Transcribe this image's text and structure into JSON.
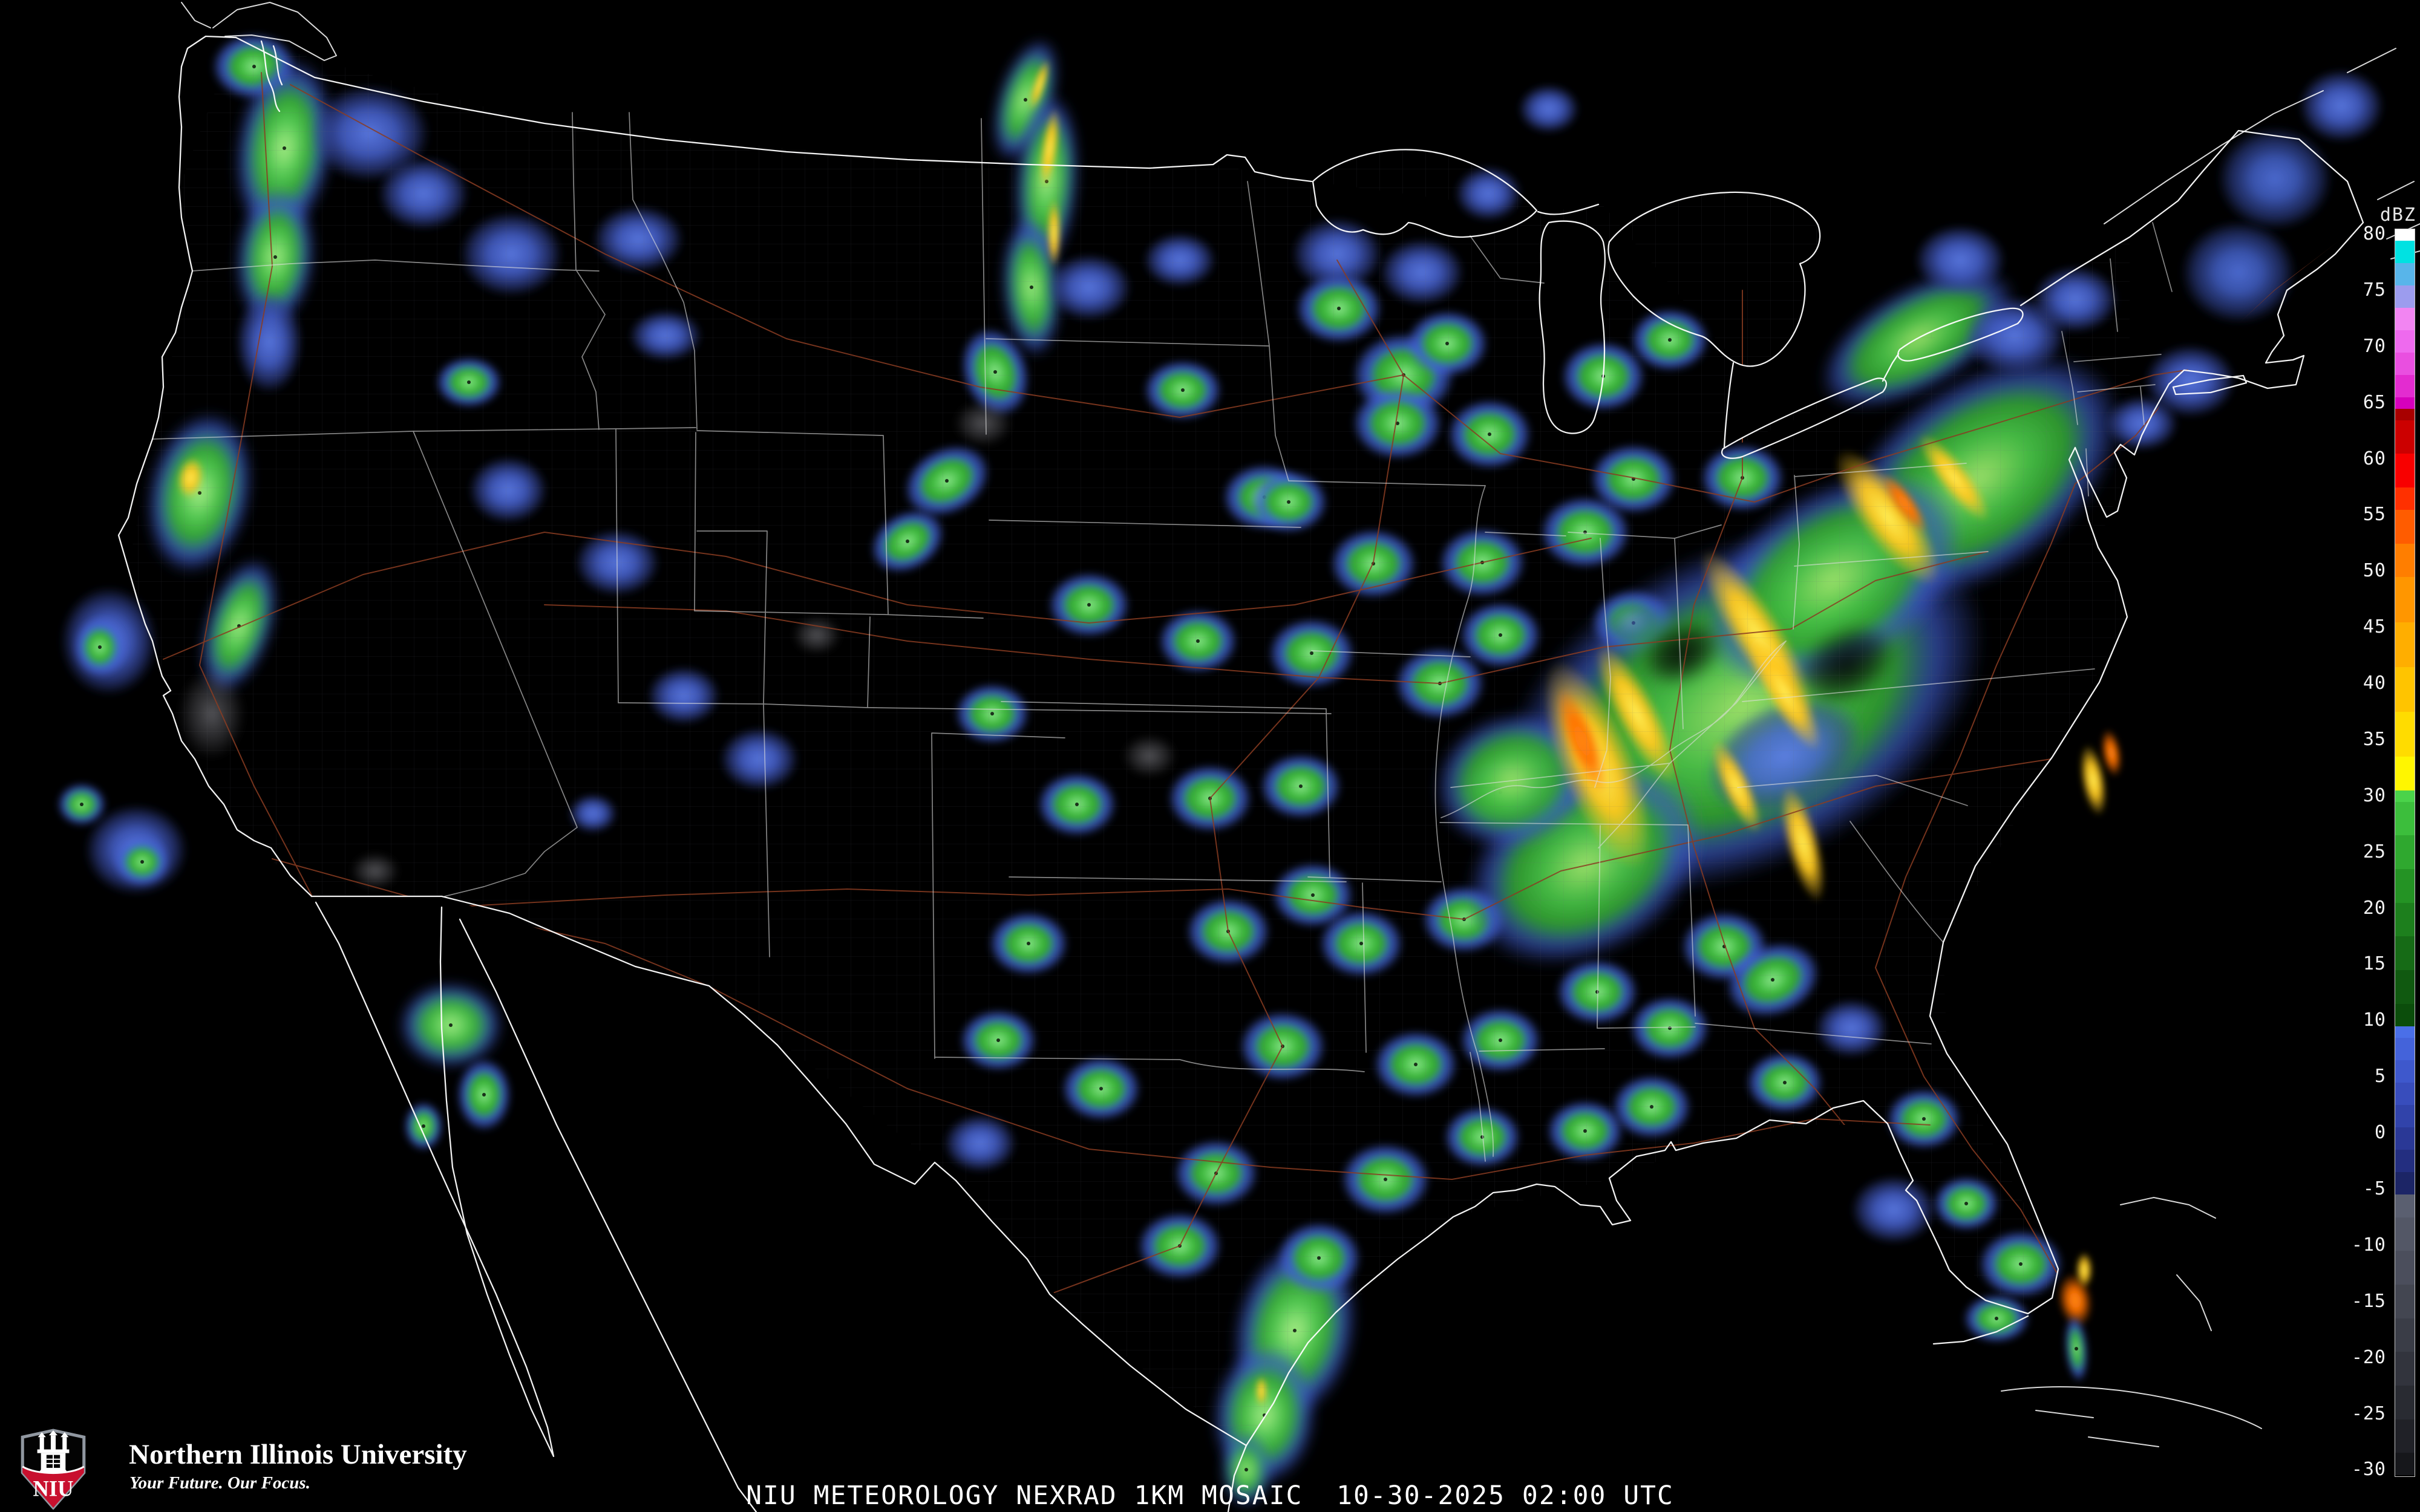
{
  "caption": {
    "text": "NIU METEOROLOGY NEXRAD 1KM MOSAIC  10-30-2025 02:00 UTC"
  },
  "branding": {
    "university_name": "Northern Illinois University",
    "tagline": "Your Future. Our Focus.",
    "logo_acronym": "NIU",
    "logo_red": "#c8102e",
    "logo_border_gray": "#9097a0"
  },
  "colorbar": {
    "title": "dBZ",
    "unit": "dBZ",
    "range_top": 80,
    "range_bottom": -31,
    "tick_labels": [
      "80",
      "75",
      "70",
      "65",
      "60",
      "55",
      "50",
      "45",
      "40",
      "35",
      "30",
      "25",
      "20",
      "15",
      "10",
      "5",
      "0",
      "-5",
      "-10",
      "-15",
      "-20",
      "-25",
      "-30"
    ],
    "key_stops": [
      [
        80,
        "#ffffff"
      ],
      [
        78,
        "#00e2e2"
      ],
      [
        76,
        "#58b5ea"
      ],
      [
        74,
        "#9c9cee"
      ],
      [
        72,
        "#f285f2"
      ],
      [
        70,
        "#ee6aee"
      ],
      [
        68,
        "#e94fe0"
      ],
      [
        66,
        "#e32cd0"
      ],
      [
        65,
        "#d600bc"
      ],
      [
        64,
        "#a80000"
      ],
      [
        61,
        "#cc0000"
      ],
      [
        58,
        "#f80000"
      ],
      [
        56,
        "#ff3000"
      ],
      [
        53,
        "#ff5c00"
      ],
      [
        50,
        "#ff7e00"
      ],
      [
        46,
        "#ff9600"
      ],
      [
        42,
        "#ffae00"
      ],
      [
        38,
        "#ffc400"
      ],
      [
        34,
        "#ffdc00"
      ],
      [
        31,
        "#fff600"
      ],
      [
        30,
        "#4ad34a"
      ],
      [
        27,
        "#3cbe3c"
      ],
      [
        24,
        "#2fa82f"
      ],
      [
        21,
        "#249324"
      ],
      [
        18,
        "#1d7f1d"
      ],
      [
        15,
        "#166b16"
      ],
      [
        12,
        "#105910"
      ],
      [
        10,
        "#0b4d0b"
      ],
      [
        9,
        "#4a6fe8"
      ],
      [
        7,
        "#4463da"
      ],
      [
        5,
        "#3e58cc"
      ],
      [
        3,
        "#384dbc"
      ],
      [
        1,
        "#3143aa"
      ],
      [
        -1,
        "#2a3896"
      ],
      [
        -3,
        "#232e80"
      ],
      [
        -5,
        "#1c2566"
      ],
      [
        -7,
        "#5a5f70"
      ],
      [
        -10,
        "#535766"
      ],
      [
        -13,
        "#4b4e5c"
      ],
      [
        -16,
        "#434651"
      ],
      [
        -19,
        "#3a3d47"
      ],
      [
        -22,
        "#32343d"
      ],
      [
        -25,
        "#292b32"
      ],
      [
        -28,
        "#202127"
      ],
      [
        -31,
        "#16171b"
      ]
    ]
  },
  "map_colors": {
    "coast": "#ffffff",
    "state": "#dedede",
    "county": "#6a6a72",
    "road": "#8a3c22",
    "water_fill": "#000000"
  },
  "echo_palettes": {
    "g": [
      [
        0,
        "#90e890",
        1
      ],
      [
        0.32,
        "#3fbc3f",
        1
      ],
      [
        0.55,
        "#2f9e2f",
        0.98
      ],
      [
        0.68,
        "#3c5ecf",
        0.9
      ],
      [
        0.82,
        "#4566dd",
        0.6
      ],
      [
        1,
        "#4566dd",
        0
      ]
    ],
    "G": [
      [
        0,
        "#b2f08c",
        1
      ],
      [
        0.3,
        "#54ca54",
        1
      ],
      [
        0.58,
        "#2f9e2f",
        1
      ],
      [
        0.78,
        "#3b58c8",
        0.8
      ],
      [
        1,
        "#3b58c8",
        0
      ]
    ],
    "S": [
      [
        0,
        "#9fe36b",
        0.98
      ],
      [
        0.35,
        "#46c046",
        0.96
      ],
      [
        0.62,
        "#2f9e2f",
        0.92
      ],
      [
        0.8,
        "#3a55c2",
        0.7
      ],
      [
        1,
        "#3a55c2",
        0
      ]
    ],
    "b": [
      [
        0,
        "#5d7ce8",
        0.95
      ],
      [
        0.45,
        "#4763d2",
        0.85
      ],
      [
        0.75,
        "#35479e",
        0.6
      ],
      [
        1,
        "#35479e",
        0
      ]
    ],
    "B": [
      [
        0,
        "#4f6fd8",
        0.95
      ],
      [
        0.4,
        "#4260c8",
        0.85
      ],
      [
        0.75,
        "#33489f",
        0.55
      ],
      [
        1,
        "#33489f",
        0
      ]
    ],
    "y": [
      [
        0,
        "#ffee55",
        1
      ],
      [
        0.45,
        "#ffc81e",
        0.95
      ],
      [
        1,
        "#ffc81e",
        0
      ]
    ],
    "o": [
      [
        0,
        "#ff8c1a",
        1
      ],
      [
        0.4,
        "#ff7000",
        0.95
      ],
      [
        1,
        "#ff7000",
        0
      ]
    ],
    "s": [
      [
        0,
        "#a8a8b0",
        0.5
      ],
      [
        0.55,
        "#84848c",
        0.3
      ],
      [
        1,
        "#84848c",
        0
      ]
    ],
    "hole": [
      [
        0,
        "#000000",
        0.9
      ],
      [
        0.6,
        "#000000",
        0.55
      ],
      [
        1,
        "#000000",
        0
      ]
    ]
  },
  "echoes": [
    [
      420,
      110,
      70,
      55,
      0,
      "g"
    ],
    [
      470,
      245,
      80,
      150,
      8,
      "G"
    ],
    [
      455,
      425,
      65,
      115,
      5,
      "G"
    ],
    [
      445,
      565,
      55,
      85,
      0,
      "b"
    ],
    [
      610,
      220,
      100,
      80,
      0,
      "b"
    ],
    [
      700,
      320,
      75,
      60,
      0,
      "b"
    ],
    [
      845,
      420,
      85,
      70,
      0,
      "b"
    ],
    [
      775,
      632,
      55,
      42,
      0,
      "g"
    ],
    [
      1055,
      395,
      75,
      55,
      0,
      "b"
    ],
    [
      1100,
      555,
      60,
      42,
      0,
      "b"
    ],
    [
      840,
      810,
      65,
      55,
      0,
      "b"
    ],
    [
      1020,
      930,
      70,
      55,
      0,
      "b"
    ],
    [
      330,
      815,
      85,
      135,
      12,
      "G"
    ],
    [
      315,
      790,
      22,
      35,
      10,
      "y"
    ],
    [
      395,
      1035,
      55,
      115,
      18,
      "G"
    ],
    [
      350,
      1180,
      55,
      75,
      0,
      "s"
    ],
    [
      180,
      1060,
      80,
      90,
      0,
      "b"
    ],
    [
      165,
      1070,
      42,
      48,
      0,
      "g"
    ],
    [
      225,
      1405,
      85,
      75,
      0,
      "b"
    ],
    [
      235,
      1425,
      45,
      40,
      0,
      "g"
    ],
    [
      135,
      1330,
      40,
      35,
      0,
      "g"
    ],
    [
      620,
      1440,
      40,
      30,
      0,
      "s"
    ],
    [
      1130,
      1150,
      60,
      48,
      0,
      "b"
    ],
    [
      1255,
      1255,
      65,
      52,
      0,
      "b"
    ],
    [
      980,
      1345,
      40,
      32,
      0,
      "b"
    ],
    [
      745,
      1695,
      85,
      70,
      0,
      "G"
    ],
    [
      800,
      1810,
      45,
      60,
      0,
      "g"
    ],
    [
      700,
      1862,
      32,
      40,
      0,
      "g"
    ],
    [
      1695,
      165,
      45,
      105,
      18,
      "G"
    ],
    [
      1730,
      300,
      52,
      145,
      4,
      "G"
    ],
    [
      1705,
      475,
      48,
      115,
      -4,
      "G"
    ],
    [
      1645,
      615,
      55,
      75,
      -18,
      "g"
    ],
    [
      1565,
      795,
      75,
      55,
      -28,
      "g"
    ],
    [
      1500,
      895,
      65,
      48,
      -30,
      "g"
    ],
    [
      1735,
      245,
      14,
      68,
      8,
      "y"
    ],
    [
      1742,
      385,
      12,
      58,
      0,
      "y"
    ],
    [
      1718,
      140,
      10,
      45,
      18,
      "y"
    ],
    [
      1800,
      475,
      70,
      55,
      0,
      "b"
    ],
    [
      1950,
      430,
      60,
      45,
      0,
      "b"
    ],
    [
      2210,
      420,
      75,
      60,
      0,
      "b"
    ],
    [
      1955,
      645,
      65,
      50,
      0,
      "g"
    ],
    [
      1625,
      700,
      48,
      38,
      0,
      "s"
    ],
    [
      2090,
      822,
      70,
      55,
      0,
      "g"
    ],
    [
      2320,
      620,
      85,
      70,
      0,
      "g"
    ],
    [
      2213,
      510,
      72,
      58,
      0,
      "g"
    ],
    [
      2392,
      568,
      68,
      55,
      0,
      "g"
    ],
    [
      2310,
      700,
      75,
      60,
      0,
      "g"
    ],
    [
      2462,
      718,
      70,
      58,
      0,
      "g"
    ],
    [
      2650,
      622,
      70,
      58,
      0,
      "g"
    ],
    [
      2700,
      792,
      72,
      58,
      0,
      "g"
    ],
    [
      2760,
      562,
      65,
      52,
      0,
      "g"
    ],
    [
      2620,
      880,
      75,
      60,
      0,
      "g"
    ],
    [
      2450,
      930,
      72,
      58,
      0,
      "g"
    ],
    [
      2270,
      932,
      72,
      58,
      0,
      "g"
    ],
    [
      2130,
      830,
      65,
      52,
      0,
      "g"
    ],
    [
      2168,
      1080,
      72,
      58,
      0,
      "g"
    ],
    [
      2380,
      1130,
      75,
      60,
      0,
      "g"
    ],
    [
      2480,
      1050,
      68,
      55,
      0,
      "g"
    ],
    [
      2700,
      1030,
      70,
      56,
      0,
      "g"
    ],
    [
      2880,
      790,
      70,
      56,
      0,
      "g"
    ],
    [
      2150,
      1300,
      68,
      54,
      0,
      "g"
    ],
    [
      2250,
      1560,
      70,
      56,
      0,
      "g"
    ],
    [
      2420,
      1520,
      70,
      56,
      0,
      "g"
    ],
    [
      2480,
      1310,
      66,
      53,
      0,
      "g"
    ],
    [
      1800,
      1000,
      68,
      54,
      0,
      "g"
    ],
    [
      1980,
      1060,
      66,
      53,
      0,
      "g"
    ],
    [
      1640,
      1180,
      62,
      50,
      0,
      "g"
    ],
    [
      2000,
      1320,
      70,
      56,
      0,
      "g"
    ],
    [
      1780,
      1330,
      66,
      53,
      0,
      "g"
    ],
    [
      1700,
      1560,
      66,
      53,
      0,
      "g"
    ],
    [
      2030,
      1540,
      70,
      56,
      0,
      "g"
    ],
    [
      2170,
      1480,
      68,
      54,
      0,
      "g"
    ],
    [
      1650,
      1720,
      64,
      51,
      0,
      "g"
    ],
    [
      1620,
      1890,
      60,
      48,
      0,
      "b"
    ],
    [
      1820,
      1800,
      66,
      53,
      0,
      "g"
    ],
    [
      2120,
      1730,
      72,
      58,
      0,
      "g"
    ],
    [
      2340,
      1760,
      70,
      56,
      0,
      "g"
    ],
    [
      2010,
      1940,
      70,
      56,
      0,
      "g"
    ],
    [
      2290,
      1950,
      74,
      60,
      0,
      "g"
    ],
    [
      1950,
      2060,
      70,
      56,
      0,
      "g"
    ],
    [
      2480,
      1720,
      68,
      54,
      0,
      "g"
    ],
    [
      2640,
      1640,
      68,
      54,
      0,
      "g"
    ],
    [
      2730,
      1830,
      66,
      53,
      0,
      "g"
    ],
    [
      2620,
      1870,
      64,
      51,
      0,
      "g"
    ],
    [
      2450,
      1880,
      64,
      51,
      0,
      "g"
    ],
    [
      1350,
      1050,
      40,
      32,
      0,
      "s"
    ],
    [
      1900,
      1250,
      45,
      35,
      0,
      "s"
    ],
    [
      2140,
      2200,
      100,
      150,
      12,
      "G"
    ],
    [
      2090,
      2340,
      85,
      115,
      5,
      "G"
    ],
    [
      2180,
      2080,
      70,
      60,
      0,
      "g"
    ],
    [
      2085,
      2300,
      10,
      25,
      0,
      "y"
    ],
    [
      2060,
      2430,
      40,
      60,
      0,
      "G"
    ],
    [
      2850,
      1565,
      72,
      58,
      0,
      "g"
    ],
    [
      2930,
      1620,
      80,
      60,
      -20,
      "g"
    ],
    [
      2760,
      1700,
      66,
      53,
      0,
      "g"
    ],
    [
      2950,
      1790,
      64,
      51,
      0,
      "g"
    ],
    [
      3060,
      1700,
      60,
      48,
      0,
      "b"
    ],
    [
      3180,
      1850,
      62,
      50,
      0,
      "g"
    ],
    [
      3130,
      2000,
      70,
      56,
      0,
      "b"
    ],
    [
      3250,
      1990,
      55,
      45,
      0,
      "g"
    ],
    [
      3340,
      2090,
      70,
      56,
      0,
      "g"
    ],
    [
      3300,
      2180,
      55,
      40,
      0,
      "g"
    ],
    [
      3430,
      2150,
      28,
      45,
      -10,
      "o"
    ],
    [
      3432,
      2230,
      18,
      55,
      -5,
      "g"
    ],
    [
      3445,
      2100,
      14,
      30,
      0,
      "y"
    ],
    [
      2880,
      1170,
      430,
      265,
      -27,
      "S"
    ],
    [
      2620,
      1430,
      210,
      150,
      -30,
      "S"
    ],
    [
      3270,
      790,
      270,
      160,
      -36,
      "S"
    ],
    [
      3170,
      560,
      180,
      85,
      -30,
      "S"
    ],
    [
      3030,
      960,
      240,
      150,
      -33,
      "S"
    ],
    [
      2500,
      1290,
      130,
      110,
      -20,
      "S"
    ],
    [
      2950,
      1250,
      140,
      90,
      -25,
      "b"
    ],
    [
      2640,
      1265,
      62,
      185,
      -22,
      "y"
    ],
    [
      2615,
      1225,
      26,
      95,
      -22,
      "o"
    ],
    [
      2705,
      1180,
      35,
      130,
      -28,
      "y"
    ],
    [
      2905,
      1050,
      42,
      165,
      -32,
      "y"
    ],
    [
      2950,
      1145,
      30,
      110,
      -30,
      "y"
    ],
    [
      3120,
      855,
      45,
      135,
      -36,
      "y"
    ],
    [
      3148,
      832,
      18,
      60,
      -36,
      "o"
    ],
    [
      3230,
      790,
      25,
      90,
      -38,
      "y"
    ],
    [
      2980,
      1395,
      28,
      100,
      -15,
      "y"
    ],
    [
      2870,
      1300,
      24,
      85,
      -25,
      "y"
    ],
    [
      3490,
      1245,
      16,
      40,
      -10,
      "o"
    ],
    [
      3460,
      1290,
      20,
      60,
      -10,
      "y"
    ],
    [
      3050,
      1100,
      90,
      60,
      -30,
      "hole"
    ],
    [
      2780,
      1080,
      70,
      50,
      -25,
      "hole"
    ],
    [
      3330,
      555,
      85,
      65,
      0,
      "b"
    ],
    [
      3430,
      495,
      70,
      55,
      0,
      "b"
    ],
    [
      3240,
      430,
      75,
      58,
      0,
      "b"
    ],
    [
      3620,
      630,
      75,
      60,
      0,
      "b"
    ],
    [
      3700,
      450,
      95,
      85,
      0,
      "B"
    ],
    [
      3760,
      295,
      95,
      85,
      0,
      "B"
    ],
    [
      3870,
      175,
      70,
      60,
      0,
      "b"
    ],
    [
      3540,
      700,
      60,
      45,
      0,
      "b"
    ],
    [
      2350,
      450,
      70,
      55,
      0,
      "b"
    ],
    [
      2460,
      320,
      55,
      45,
      0,
      "b"
    ],
    [
      2560,
      180,
      50,
      40,
      0,
      "b"
    ]
  ]
}
